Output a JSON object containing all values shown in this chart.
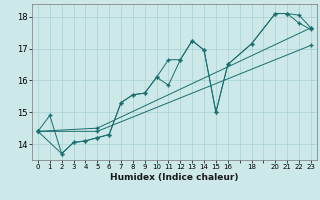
{
  "xlabel": "Humidex (Indice chaleur)",
  "bg_color": "#cce8e8",
  "line_color": "#1a6e6e",
  "grid_color": "#aad0d0",
  "xlim": [
    -0.5,
    23.5
  ],
  "ylim": [
    13.5,
    18.4
  ],
  "yticks": [
    14,
    15,
    16,
    17,
    18
  ],
  "xticks": [
    0,
    1,
    2,
    3,
    4,
    5,
    6,
    7,
    8,
    9,
    10,
    11,
    12,
    13,
    14,
    15,
    16,
    17,
    18,
    19,
    20,
    21,
    22,
    23
  ],
  "xtick_labels": [
    "0",
    "1",
    "2",
    "3",
    "4",
    "5",
    "6",
    "7",
    "8",
    "9",
    "10",
    "11",
    "12",
    "13",
    "14",
    "15",
    "16",
    "",
    "18",
    "",
    "20",
    "21",
    "22",
    "23"
  ],
  "lines": [
    {
      "x": [
        0,
        1,
        2,
        3,
        4,
        5,
        6,
        7,
        8,
        9,
        10,
        11,
        12,
        13,
        14,
        15,
        16,
        18,
        20,
        21,
        22,
        23
      ],
      "y": [
        14.4,
        14.9,
        13.7,
        14.05,
        14.1,
        14.2,
        14.3,
        15.3,
        15.55,
        15.6,
        16.1,
        16.65,
        16.65,
        17.25,
        16.95,
        15.0,
        16.5,
        17.15,
        18.1,
        18.1,
        17.8,
        17.6
      ]
    },
    {
      "x": [
        0,
        2,
        3,
        4,
        5,
        6,
        7,
        8,
        9,
        10,
        11,
        12,
        13,
        14,
        15,
        16,
        18,
        20,
        21,
        22,
        23
      ],
      "y": [
        14.4,
        13.7,
        14.05,
        14.1,
        14.2,
        14.3,
        15.3,
        15.55,
        15.6,
        16.1,
        15.85,
        16.65,
        17.25,
        16.95,
        15.0,
        16.5,
        17.15,
        18.1,
        18.1,
        18.05,
        17.65
      ]
    },
    {
      "x": [
        0,
        5,
        23
      ],
      "y": [
        14.4,
        14.5,
        17.65
      ]
    },
    {
      "x": [
        0,
        5,
        23
      ],
      "y": [
        14.4,
        14.4,
        17.1
      ]
    }
  ]
}
